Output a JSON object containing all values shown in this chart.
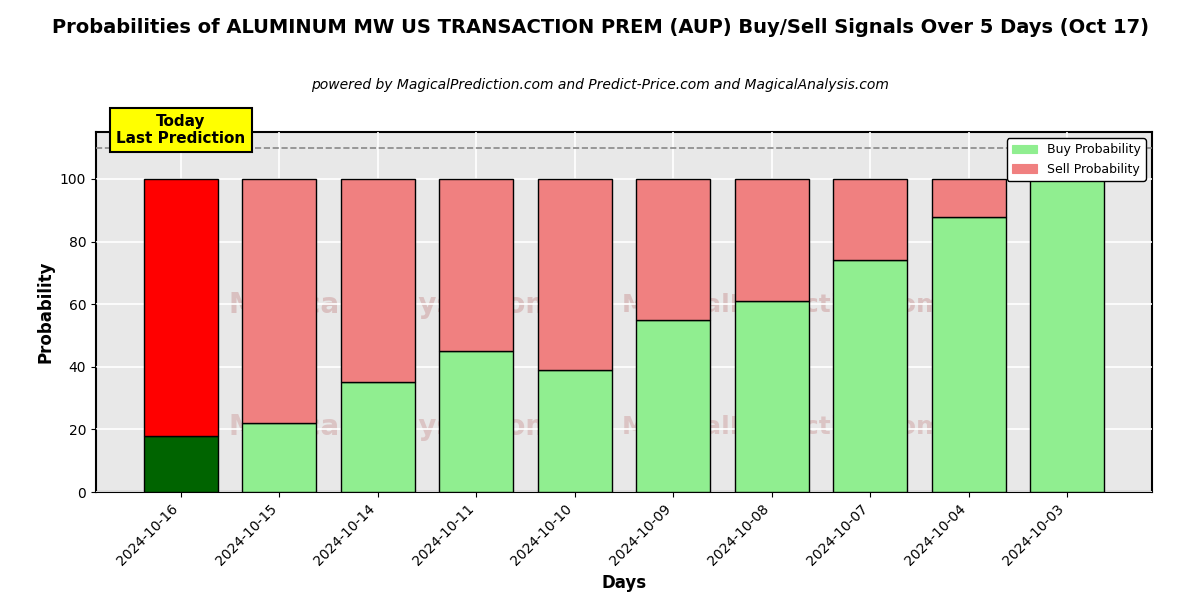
{
  "title": "Probabilities of ALUMINUM MW US TRANSACTION PREM (AUP) Buy/Sell Signals Over 5 Days (Oct 17)",
  "subtitle": "powered by MagicalPrediction.com and Predict-Price.com and MagicalAnalysis.com",
  "xlabel": "Days",
  "ylabel": "Probability",
  "dates": [
    "2024-10-16",
    "2024-10-15",
    "2024-10-14",
    "2024-10-11",
    "2024-10-10",
    "2024-10-09",
    "2024-10-08",
    "2024-10-07",
    "2024-10-04",
    "2024-10-03"
  ],
  "buy_values": [
    18,
    22,
    35,
    45,
    39,
    55,
    61,
    74,
    88,
    100
  ],
  "sell_values": [
    82,
    78,
    65,
    55,
    61,
    45,
    39,
    26,
    12,
    0
  ],
  "today_bar_buy_color": "#006400",
  "today_bar_sell_color": "#FF0000",
  "normal_bar_buy_color": "#90EE90",
  "normal_bar_sell_color": "#F08080",
  "today_annotation_bg": "#FFFF00",
  "today_annotation_text": "Today\nLast Prediction",
  "legend_buy_label": "Buy Probability",
  "legend_sell_label": "Sell Probability",
  "ylim": [
    0,
    115
  ],
  "yticks": [
    0,
    20,
    40,
    60,
    80,
    100
  ],
  "dashed_line_y": 110,
  "plot_bg_color": "#E8E8E8",
  "fig_bg_color": "#FFFFFF",
  "grid_color": "#FFFFFF",
  "bar_edge_color": "#000000",
  "title_fontsize": 14,
  "subtitle_fontsize": 10,
  "axis_label_fontsize": 12,
  "tick_fontsize": 10,
  "bar_width": 0.75,
  "annotation_fontsize": 11
}
